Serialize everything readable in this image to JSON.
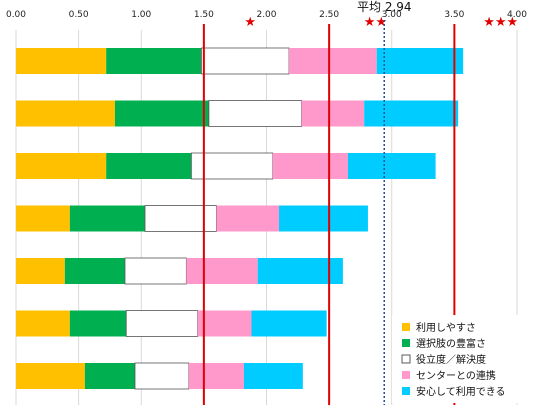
{
  "chart_data": {
    "type": "bar",
    "orientation": "horizontal",
    "stacked": true,
    "x_ticks": [
      "0.00",
      "0.50",
      "1.00",
      "1.50",
      "2.00",
      "2.50",
      "3.00",
      "3.50",
      "4.00"
    ],
    "xlim": [
      0,
      4
    ],
    "grid": "vertical",
    "legend_position": "bottom-right",
    "series": [
      {
        "name": "利用しやすさ",
        "color": "#ffc000",
        "values": [
          0.72,
          0.79,
          0.72,
          0.43,
          0.39,
          0.43,
          0.55
        ]
      },
      {
        "name": "選択肢の豊富さ",
        "color": "#00b050",
        "values": [
          0.76,
          0.75,
          0.68,
          0.6,
          0.48,
          0.45,
          0.4
        ]
      },
      {
        "name": "役立度／解決度",
        "color": "#ffffff",
        "values": [
          0.7,
          0.74,
          0.65,
          0.57,
          0.49,
          0.57,
          0.43
        ]
      },
      {
        "name": "センターとの連携",
        "color": "#ff99cc",
        "values": [
          0.7,
          0.5,
          0.6,
          0.5,
          0.57,
          0.43,
          0.44
        ]
      },
      {
        "name": "安心して利用できる",
        "color": "#00ccff",
        "values": [
          0.69,
          0.75,
          0.7,
          0.71,
          0.68,
          0.6,
          0.47
        ]
      }
    ],
    "annotations": {
      "average_label": "平均 2.94",
      "average_value": 2.94,
      "reference_lines": [
        1.5,
        2.5,
        3.5
      ],
      "star_marks": [
        {
          "text": "★",
          "at": 1.87
        },
        {
          "text": "★★",
          "at": 2.87
        },
        {
          "text": "★★★",
          "at": 3.87
        }
      ]
    }
  }
}
